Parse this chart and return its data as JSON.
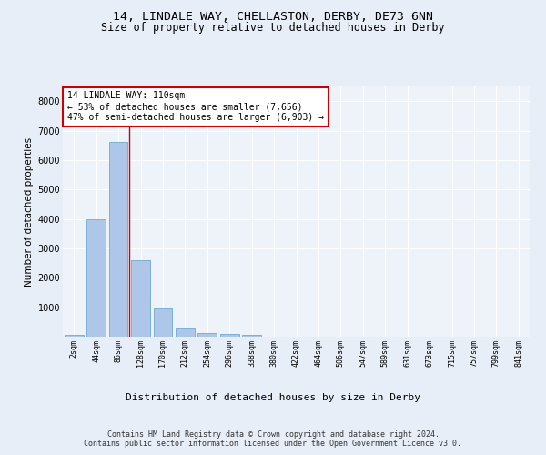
{
  "title1": "14, LINDALE WAY, CHELLASTON, DERBY, DE73 6NN",
  "title2": "Size of property relative to detached houses in Derby",
  "xlabel": "Distribution of detached houses by size in Derby",
  "ylabel": "Number of detached properties",
  "categories": [
    "2sqm",
    "44sqm",
    "86sqm",
    "128sqm",
    "170sqm",
    "212sqm",
    "254sqm",
    "296sqm",
    "338sqm",
    "380sqm",
    "422sqm",
    "464sqm",
    "506sqm",
    "547sqm",
    "589sqm",
    "631sqm",
    "673sqm",
    "715sqm",
    "757sqm",
    "799sqm",
    "841sqm"
  ],
  "values": [
    70,
    4000,
    6600,
    2600,
    950,
    310,
    130,
    80,
    60,
    0,
    0,
    0,
    0,
    0,
    0,
    0,
    0,
    0,
    0,
    0,
    0
  ],
  "bar_color": "#aec6e8",
  "bar_edge_color": "#5a9fd4",
  "vline_color": "#cc0000",
  "annotation_line1": "14 LINDALE WAY: 110sqm",
  "annotation_line2": "← 53% of detached houses are smaller (7,656)",
  "annotation_line3": "47% of semi-detached houses are larger (6,903) →",
  "annotation_box_color": "#ffffff",
  "annotation_box_edge_color": "#cc0000",
  "ylim": [
    0,
    8500
  ],
  "yticks": [
    0,
    1000,
    2000,
    3000,
    4000,
    5000,
    6000,
    7000,
    8000
  ],
  "bg_color": "#e8eef7",
  "plot_bg_color": "#eef2f9",
  "footer": "Contains HM Land Registry data © Crown copyright and database right 2024.\nContains public sector information licensed under the Open Government Licence v3.0.",
  "title1_fontsize": 9.5,
  "title2_fontsize": 8.5,
  "xlabel_fontsize": 8,
  "ylabel_fontsize": 7.5,
  "annotation_fontsize": 7,
  "footer_fontsize": 6,
  "tick_fontsize": 6,
  "ytick_fontsize": 7
}
